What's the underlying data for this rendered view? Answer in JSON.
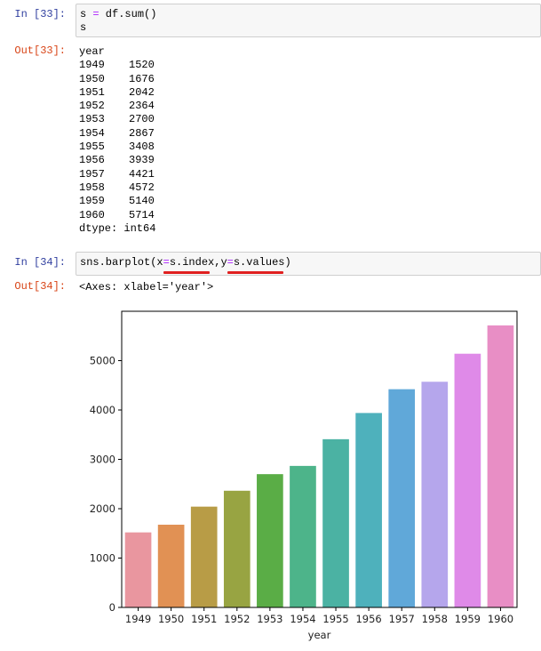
{
  "cells": [
    {
      "in_prompt": "In  [33]:",
      "code_lines": [
        "s = df.sum()",
        "s"
      ],
      "out_prompt": "Out[33]:",
      "output": {
        "header": "year",
        "rows": [
          {
            "year": "1949",
            "value": "1520"
          },
          {
            "year": "1950",
            "value": "1676"
          },
          {
            "year": "1951",
            "value": "2042"
          },
          {
            "year": "1952",
            "value": "2364"
          },
          {
            "year": "1953",
            "value": "2700"
          },
          {
            "year": "1954",
            "value": "2867"
          },
          {
            "year": "1955",
            "value": "3408"
          },
          {
            "year": "1956",
            "value": "3939"
          },
          {
            "year": "1957",
            "value": "4421"
          },
          {
            "year": "1958",
            "value": "4572"
          },
          {
            "year": "1959",
            "value": "5140"
          },
          {
            "year": "1960",
            "value": "5714"
          }
        ],
        "footer": "dtype: int64"
      }
    },
    {
      "in_prompt": "In  [34]:",
      "code_parts": {
        "p1": "sns.barplot(x",
        "eq1": "=",
        "p2": "s.index",
        "p3": ",y",
        "eq2": "=",
        "p4": "s.values",
        "p5": ")"
      },
      "out_prompt": "Out[34]:",
      "output_text": "<Axes: xlabel='year'>"
    }
  ],
  "annotation_color": "#e02020",
  "chart_data": {
    "type": "bar",
    "categories": [
      "1949",
      "1950",
      "1951",
      "1952",
      "1953",
      "1954",
      "1955",
      "1956",
      "1957",
      "1958",
      "1959",
      "1960"
    ],
    "values": [
      1520,
      1676,
      2042,
      2364,
      2700,
      2867,
      3408,
      3939,
      4421,
      4572,
      5140,
      5714
    ],
    "colors": [
      "#e9969f",
      "#e19154",
      "#b89c46",
      "#98a442",
      "#5aad46",
      "#4db48a",
      "#4bb2a3",
      "#4eb1bc",
      "#60a8d9",
      "#b5a6ec",
      "#df8ae8",
      "#e88ec5"
    ],
    "xlabel": "year",
    "ylabel": "",
    "yticks": [
      0,
      1000,
      2000,
      3000,
      4000,
      5000
    ],
    "ylim": [
      0,
      6000
    ],
    "grid": false,
    "legend": false
  }
}
